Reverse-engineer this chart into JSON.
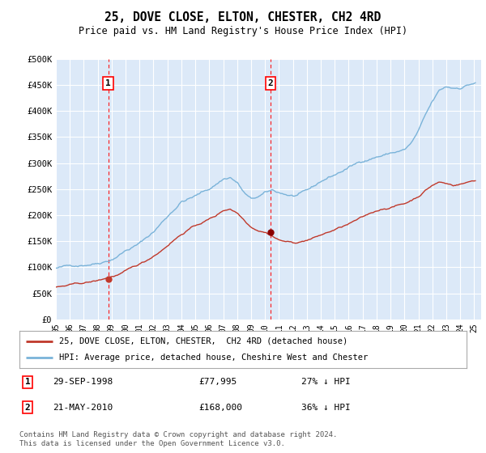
{
  "title": "25, DOVE CLOSE, ELTON, CHESTER, CH2 4RD",
  "subtitle": "Price paid vs. HM Land Registry's House Price Index (HPI)",
  "ylabel_ticks": [
    "£0",
    "£50K",
    "£100K",
    "£150K",
    "£200K",
    "£250K",
    "£300K",
    "£350K",
    "£400K",
    "£450K",
    "£500K"
  ],
  "ytick_values": [
    0,
    50000,
    100000,
    150000,
    200000,
    250000,
    300000,
    350000,
    400000,
    450000,
    500000
  ],
  "ylim": [
    0,
    500000
  ],
  "xlim_start": 1995.0,
  "xlim_end": 2025.5,
  "background_color": "#dce9f8",
  "plot_bg_color": "#dce9f8",
  "grid_color": "#c8d8e8",
  "hpi_color": "#7ab3d9",
  "price_color": "#c0392b",
  "marker1_date": 1998.75,
  "marker1_price": 77995,
  "marker1_label": "29-SEP-1998",
  "marker1_amount": "£77,995",
  "marker1_hpi": "27% ↓ HPI",
  "marker2_date": 2010.38,
  "marker2_price": 168000,
  "marker2_label": "21-MAY-2010",
  "marker2_amount": "£168,000",
  "marker2_hpi": "36% ↓ HPI",
  "legend_label1": "25, DOVE CLOSE, ELTON, CHESTER,  CH2 4RD (detached house)",
  "legend_label2": "HPI: Average price, detached house, Cheshire West and Chester",
  "footer": "Contains HM Land Registry data © Crown copyright and database right 2024.\nThis data is licensed under the Open Government Licence v3.0."
}
